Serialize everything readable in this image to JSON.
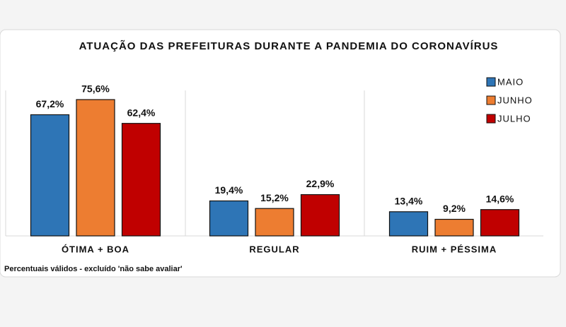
{
  "chart_data": {
    "type": "bar",
    "title": "ATUAÇÃO DAS PREFEITURAS DURANTE A PANDEMIA DO CORONAVÍRUS",
    "categories": [
      "ÓTIMA + BOA",
      "REGULAR",
      "RUIM + PÉSSIMA"
    ],
    "series": [
      {
        "name": "MAIO",
        "color": "#2e75b6",
        "values": [
          67.2,
          19.4,
          13.4
        ],
        "value_labels": [
          "67,2%",
          "19,4%",
          "13,4%"
        ]
      },
      {
        "name": "JUNHO",
        "color": "#ed7d31",
        "values": [
          75.6,
          15.2,
          9.2
        ],
        "value_labels": [
          "75,6%",
          "15,2%",
          "9,2%"
        ]
      },
      {
        "name": "JULHO",
        "color": "#c00000",
        "values": [
          62.4,
          22.9,
          14.6
        ],
        "value_labels": [
          "62,4%",
          "22,9%",
          "14,6%"
        ]
      }
    ],
    "legend": "top-right",
    "note": "Percentuais válidos - excluído 'não sabe avaliar'"
  }
}
